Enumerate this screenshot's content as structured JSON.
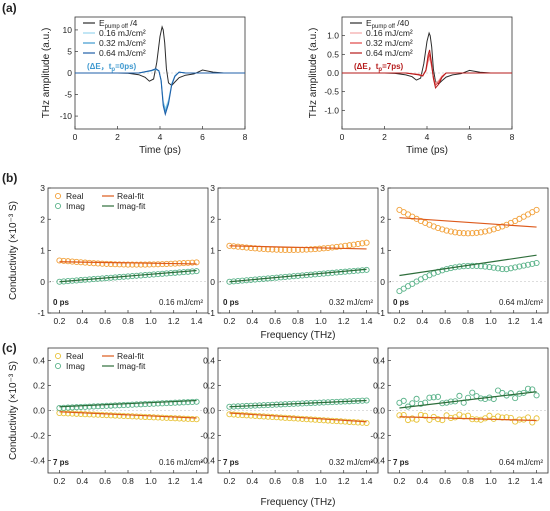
{
  "panel_letters": {
    "a": "(a)",
    "b": "(b)",
    "c": "(c)"
  },
  "colors": {
    "black": "#2b2b2b",
    "lightblue": "#9ad6ee",
    "midblue": "#3d98cf",
    "darkblue": "#1f5fa8",
    "pink": "#f3a6a6",
    "red": "#e04545",
    "darkred": "#b51a1a",
    "realMarker": "#f2a13a",
    "realMarkerC": "#e8c33a",
    "imagMarker": "#5bb38a",
    "realFit": "#dd5a1c",
    "imagFit": "#2e6e3b",
    "refLine": "#bbbbbb"
  },
  "chart_data": [
    {
      "id": "a1",
      "type": "line",
      "ylabel": "THz amplitude (a.u.)",
      "xlabel": "Time (ps)",
      "xlim": [
        0,
        8
      ],
      "ylim": [
        -13,
        13
      ],
      "xticks": [
        0,
        2,
        4,
        6,
        8
      ],
      "yticks": [
        -10,
        -5,
        0,
        5,
        10
      ],
      "annotation_prefix": "(ΔE，t",
      "annotation_sub": "p",
      "annotation_suffix": "=0ps)",
      "series": [
        {
          "name": "E",
          "name_sub": "pump off",
          "name_suffix": " /4",
          "color": "#2b2b2b",
          "width": 1,
          "x": [
            0,
            1,
            2,
            2.5,
            3,
            3.3,
            3.5,
            3.7,
            3.85,
            4,
            4.1,
            4.15,
            4.22,
            4.3,
            4.4,
            4.55,
            4.7,
            4.9,
            5.2,
            5.6,
            6,
            6.5,
            7,
            8
          ],
          "y": [
            0,
            0,
            0,
            -0.05,
            -0.4,
            -1,
            -1.9,
            -1.4,
            2.5,
            8.5,
            10.7,
            10,
            7,
            1,
            -2.3,
            -2.9,
            -2.1,
            -1.1,
            -0.5,
            -0.2,
            0.7,
            0.2,
            0,
            0
          ]
        },
        {
          "name": "0.16 mJ/cm²",
          "color": "#9ad6ee",
          "width": 1,
          "x": [
            0,
            3,
            3.6,
            3.8,
            3.95,
            4.05,
            4.15,
            4.25,
            4.4,
            4.55,
            4.7,
            4.9,
            5.2,
            8
          ],
          "y": [
            0,
            0,
            0.5,
            0.8,
            0.4,
            -1.5,
            -6.5,
            -8.3,
            -6.3,
            -2.5,
            -0.6,
            0.2,
            0,
            0
          ]
        },
        {
          "name": "0.32 mJ/cm²",
          "color": "#3d98cf",
          "width": 1,
          "x": [
            0,
            3,
            3.6,
            3.8,
            3.95,
            4.05,
            4.15,
            4.25,
            4.4,
            4.55,
            4.7,
            4.9,
            5.2,
            8
          ],
          "y": [
            0,
            0,
            0.5,
            0.9,
            0.5,
            -1.6,
            -7,
            -9,
            -6.8,
            -2.6,
            -0.7,
            0.2,
            0,
            0
          ]
        },
        {
          "name": "0.64 mJ/cm²",
          "color": "#1f5fa8",
          "width": 1,
          "x": [
            0,
            3,
            3.6,
            3.8,
            3.95,
            4.05,
            4.15,
            4.25,
            4.4,
            4.55,
            4.7,
            4.9,
            5.2,
            8
          ],
          "y": [
            0,
            0,
            0.6,
            1,
            0.5,
            -1.8,
            -7.6,
            -9.6,
            -7.2,
            -2.8,
            -0.8,
            0.2,
            0,
            0
          ]
        }
      ]
    },
    {
      "id": "a2",
      "type": "line",
      "ylabel": "THz amplitude (a.u.)",
      "xlabel": "Time (ps)",
      "xlim": [
        0,
        8
      ],
      "ylim": [
        -1.5,
        1.5
      ],
      "xticks": [
        0,
        2,
        4,
        6,
        8
      ],
      "yticks": [
        -1.0,
        -0.5,
        0.0,
        0.5,
        1.0
      ],
      "annotation_prefix": "(ΔE，t",
      "annotation_sub": "p",
      "annotation_suffix": "=7ps)",
      "series": [
        {
          "name": "E",
          "name_sub": "pump off",
          "name_suffix": " /40",
          "color": "#2b2b2b",
          "width": 1,
          "x": [
            0,
            1,
            2,
            2.5,
            3,
            3.3,
            3.5,
            3.7,
            3.85,
            4,
            4.1,
            4.15,
            4.22,
            4.3,
            4.4,
            4.55,
            4.7,
            4.9,
            5.2,
            5.6,
            6,
            6.5,
            7,
            8
          ],
          "y": [
            0,
            0,
            0,
            -0.01,
            -0.05,
            -0.1,
            -0.19,
            -0.14,
            0.25,
            0.85,
            1.07,
            1.0,
            0.7,
            0.1,
            -0.23,
            -0.29,
            -0.21,
            -0.11,
            -0.05,
            -0.02,
            0.07,
            0.02,
            0,
            0
          ]
        },
        {
          "name": "0.16 mJ/cm²",
          "color": "#f3a6a6",
          "width": 1,
          "x": [
            0,
            3,
            3.6,
            3.8,
            3.95,
            4.05,
            4.12,
            4.2,
            4.3,
            4.4,
            4.55,
            4.7,
            4.9,
            5.2,
            8
          ],
          "y": [
            0,
            0,
            -0.03,
            -0.06,
            0.05,
            0.3,
            0.4,
            0.2,
            -0.1,
            -0.28,
            -0.2,
            -0.08,
            0,
            0,
            0
          ]
        },
        {
          "name": "0.32 mJ/cm²",
          "color": "#e04545",
          "width": 1,
          "x": [
            0,
            3,
            3.6,
            3.8,
            3.95,
            4.05,
            4.12,
            4.2,
            4.3,
            4.4,
            4.55,
            4.7,
            4.9,
            5.2,
            8
          ],
          "y": [
            0,
            0,
            -0.04,
            -0.07,
            0.06,
            0.38,
            0.5,
            0.26,
            -0.12,
            -0.33,
            -0.24,
            -0.1,
            0,
            0,
            0
          ]
        },
        {
          "name": "0.64 mJ/cm²",
          "color": "#b51a1a",
          "width": 1,
          "x": [
            0,
            3,
            3.6,
            3.8,
            3.95,
            4.05,
            4.12,
            4.2,
            4.3,
            4.4,
            4.55,
            4.7,
            4.9,
            5.2,
            8
          ],
          "y": [
            0,
            0,
            -0.05,
            -0.08,
            0.08,
            0.48,
            0.62,
            0.32,
            -0.15,
            -0.4,
            -0.3,
            -0.12,
            0,
            0,
            0
          ]
        }
      ]
    },
    {
      "id": "b1",
      "type": "scatter",
      "ylabel": "Conductivity (×10⁻³ S)",
      "xlabel": "Frequency (THz)",
      "xlim": [
        0.1,
        1.5
      ],
      "ylim": [
        -1.0,
        3.0
      ],
      "xticks": [
        0.2,
        0.4,
        0.6,
        0.8,
        1.0,
        1.2,
        1.4
      ],
      "yticks": [
        -1,
        0,
        1,
        2,
        3
      ],
      "delay": "0 ps",
      "fluence": "0.16 mJ/cm²",
      "legend": {
        "real": "Real",
        "imag": "Imag",
        "realfit": "Real-fit",
        "imagfit": "Imag-fit"
      },
      "real_start": 0.68,
      "real_end": 0.62,
      "real_dip": 0.1,
      "imag_start": 0.0,
      "imag_end": 0.34,
      "realfit": [
        0.64,
        0.57
      ],
      "imagfit": [
        0.0,
        0.36
      ]
    },
    {
      "id": "b2",
      "type": "scatter",
      "xlabel": "Frequency (THz)",
      "xlim": [
        0.1,
        1.5
      ],
      "ylim": [
        -1.0,
        3.0
      ],
      "xticks": [
        0.2,
        0.4,
        0.6,
        0.8,
        1.0,
        1.2,
        1.4
      ],
      "yticks": [
        -1,
        0,
        1,
        2,
        3
      ],
      "delay": "0 ps",
      "fluence": "0.32 mJ/cm²",
      "real_start": 1.15,
      "real_end": 1.25,
      "real_dip": 0.18,
      "imag_start": 0.0,
      "imag_end": 0.38,
      "realfit": [
        1.15,
        1.05
      ],
      "imagfit": [
        0.0,
        0.4
      ]
    },
    {
      "id": "b3",
      "type": "scatter",
      "xlabel": "Frequency (THz)",
      "xlim": [
        0.1,
        1.5
      ],
      "ylim": [
        -1.0,
        3.0
      ],
      "xticks": [
        0.2,
        0.4,
        0.6,
        0.8,
        1.0,
        1.2,
        1.4
      ],
      "yticks": [
        -1,
        0,
        1,
        2,
        3
      ],
      "delay": "0 ps",
      "fluence": "0.64 mJ/cm²",
      "real_start": 2.3,
      "real_end": 2.3,
      "real_dip": 0.75,
      "imag_start": -0.3,
      "imag_end": 0.6,
      "imag_bump": 0.4,
      "realfit": [
        2.05,
        1.75
      ],
      "imagfit": [
        0.2,
        0.85
      ]
    },
    {
      "id": "c1",
      "type": "scatter",
      "ylabel": "Conductivity (×10⁻³ S)",
      "xlabel": "Frequency (THz)",
      "xlim": [
        0.1,
        1.5
      ],
      "ylim": [
        -0.5,
        0.5
      ],
      "xticks": [
        0.2,
        0.4,
        0.6,
        0.8,
        1.0,
        1.2,
        1.4
      ],
      "yticks": [
        -0.4,
        -0.2,
        0.0,
        0.2,
        0.4
      ],
      "delay": "7 ps",
      "fluence": "0.16 mJ/cm²",
      "legend": {
        "real": "Real",
        "imag": "Imag",
        "realfit": "Real-fit",
        "imagfit": "Imag-fit"
      },
      "real_start": -0.02,
      "real_end": -0.07,
      "real_dip": 0.0,
      "imag_start": 0.02,
      "imag_end": 0.07,
      "realfit": [
        -0.01,
        -0.06
      ],
      "imagfit": [
        0.03,
        0.08
      ]
    },
    {
      "id": "c2",
      "type": "scatter",
      "xlabel": "Frequency (THz)",
      "xlim": [
        0.1,
        1.5
      ],
      "ylim": [
        -0.5,
        0.5
      ],
      "xticks": [
        0.2,
        0.4,
        0.6,
        0.8,
        1.0,
        1.2,
        1.4
      ],
      "yticks": [
        -0.4,
        -0.2,
        0.0,
        0.2,
        0.4
      ],
      "delay": "7 ps",
      "fluence": "0.32 mJ/cm²",
      "real_start": -0.03,
      "real_end": -0.1,
      "real_dip": 0.0,
      "imag_start": 0.03,
      "imag_end": 0.08,
      "realfit": [
        -0.02,
        -0.09
      ],
      "imagfit": [
        0.03,
        0.08
      ]
    },
    {
      "id": "c3",
      "type": "scatter",
      "xlabel": "Frequency (THz)",
      "xlim": [
        0.1,
        1.5
      ],
      "ylim": [
        -0.5,
        0.5
      ],
      "xticks": [
        0.2,
        0.4,
        0.6,
        0.8,
        1.0,
        1.2,
        1.4
      ],
      "yticks": [
        -0.4,
        -0.2,
        0.0,
        0.2,
        0.4
      ],
      "delay": "7 ps",
      "fluence": "0.64 mJ/cm²",
      "real_start": -0.05,
      "real_end": -0.08,
      "real_dip": 0.0,
      "noise": 0.03,
      "imag_start": 0.05,
      "imag_end": 0.15,
      "imag_noise": 0.04,
      "realfit": [
        -0.05,
        -0.08
      ],
      "imagfit": [
        0.02,
        0.15
      ]
    }
  ]
}
